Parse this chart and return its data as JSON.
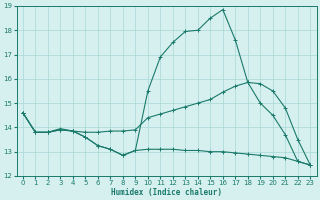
{
  "x": [
    0,
    1,
    2,
    3,
    4,
    5,
    6,
    7,
    8,
    9,
    10,
    11,
    12,
    13,
    14,
    15,
    16,
    17,
    18,
    19,
    20,
    21,
    22,
    23
  ],
  "curve1": [
    14.6,
    13.8,
    13.8,
    13.9,
    13.85,
    13.6,
    13.25,
    13.1,
    12.85,
    13.05,
    15.5,
    16.9,
    17.5,
    17.95,
    18.0,
    18.5,
    18.85,
    17.6,
    15.85,
    15.0,
    14.5,
    13.7,
    12.6,
    12.45
  ],
  "curve2": [
    14.6,
    13.8,
    13.8,
    13.95,
    13.85,
    13.8,
    13.8,
    13.85,
    13.85,
    13.9,
    14.4,
    14.55,
    14.7,
    14.85,
    15.0,
    15.15,
    15.45,
    15.7,
    15.85,
    15.8,
    15.5,
    14.8,
    13.5,
    12.45
  ],
  "curve3": [
    14.6,
    13.8,
    13.8,
    13.9,
    13.85,
    13.6,
    13.25,
    13.1,
    12.85,
    13.05,
    13.1,
    13.1,
    13.1,
    13.05,
    13.05,
    13.0,
    13.0,
    12.95,
    12.9,
    12.85,
    12.8,
    12.75,
    12.6,
    12.45
  ],
  "color": "#1a7a6a",
  "bg_color": "#d6f0f0",
  "grid_color": "#a8d8d8",
  "xlabel": "Humidex (Indice chaleur)",
  "ylim": [
    12,
    19
  ],
  "xlim": [
    -0.5,
    23.5
  ]
}
